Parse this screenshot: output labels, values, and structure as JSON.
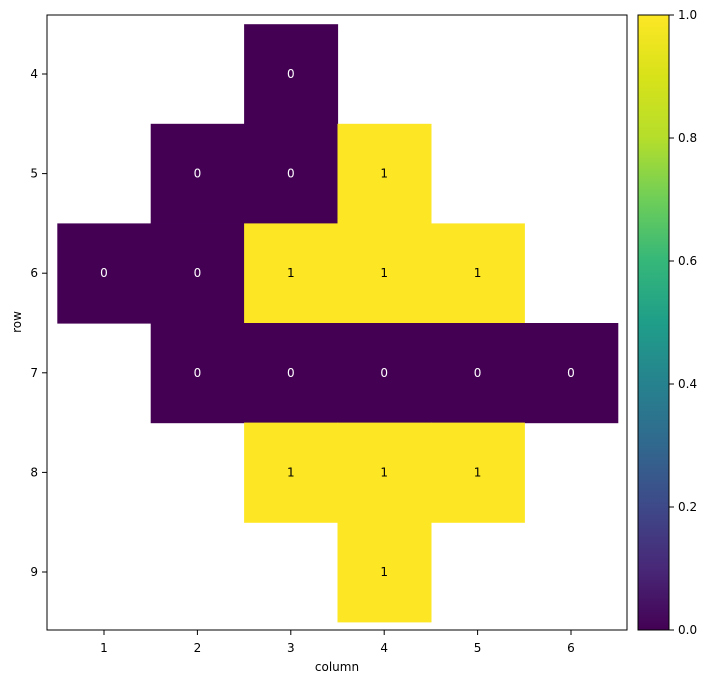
{
  "chart_data": {
    "type": "heatmap",
    "title": "",
    "xlabel": "column",
    "ylabel": "row",
    "x_ticks": [
      "1",
      "2",
      "3",
      "4",
      "5",
      "6"
    ],
    "y_ticks": [
      "4",
      "5",
      "6",
      "7",
      "8",
      "9"
    ],
    "x_range": [
      1,
      6
    ],
    "y_range": [
      4,
      9
    ],
    "cells": [
      {
        "row": 4,
        "col": 3,
        "value": 0
      },
      {
        "row": 5,
        "col": 2,
        "value": 0
      },
      {
        "row": 5,
        "col": 3,
        "value": 0
      },
      {
        "row": 5,
        "col": 4,
        "value": 1
      },
      {
        "row": 6,
        "col": 1,
        "value": 0
      },
      {
        "row": 6,
        "col": 2,
        "value": 0
      },
      {
        "row": 6,
        "col": 3,
        "value": 1
      },
      {
        "row": 6,
        "col": 4,
        "value": 1
      },
      {
        "row": 6,
        "col": 5,
        "value": 1
      },
      {
        "row": 7,
        "col": 2,
        "value": 0
      },
      {
        "row": 7,
        "col": 3,
        "value": 0
      },
      {
        "row": 7,
        "col": 4,
        "value": 0
      },
      {
        "row": 7,
        "col": 5,
        "value": 0
      },
      {
        "row": 7,
        "col": 6,
        "value": 0
      },
      {
        "row": 8,
        "col": 3,
        "value": 1
      },
      {
        "row": 8,
        "col": 4,
        "value": 1
      },
      {
        "row": 8,
        "col": 5,
        "value": 1
      },
      {
        "row": 9,
        "col": 4,
        "value": 1
      }
    ],
    "colorbar": {
      "colormap": "viridis",
      "range": [
        0.0,
        1.0
      ],
      "ticks": [
        0.0,
        0.2,
        0.4,
        0.6,
        0.8,
        1.0
      ],
      "tick_labels": [
        "0.0",
        "0.2",
        "0.4",
        "0.6",
        "0.8",
        "1.0"
      ]
    },
    "colors": {
      "low": "#440154",
      "high": "#fde725",
      "label_on_low": "#ffffff",
      "label_on_high": "#000000"
    },
    "grid": false
  }
}
